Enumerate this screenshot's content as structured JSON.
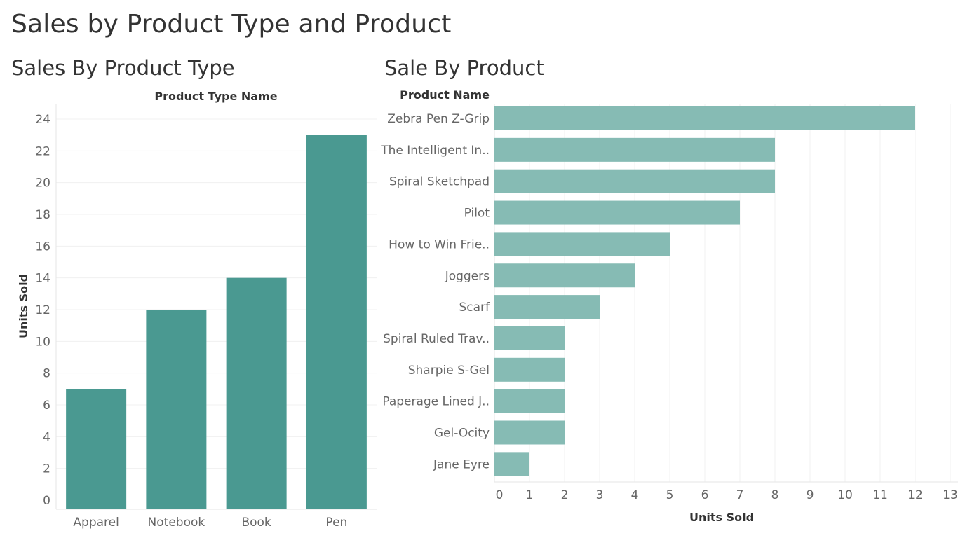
{
  "dashboard": {
    "title": "Sales by Product Type and Product"
  },
  "chart_data": [
    {
      "type": "bar",
      "orientation": "vertical",
      "title": "Sales By Product Type",
      "header_label": "Product Type Name",
      "categories": [
        "Apparel",
        "Notebook",
        "Book",
        "Pen"
      ],
      "values": [
        7,
        12,
        14,
        23
      ],
      "xlabel": "",
      "ylabel": "Units Sold",
      "ylim": [
        0,
        24
      ],
      "yticks": [
        0,
        2,
        4,
        6,
        8,
        10,
        12,
        14,
        16,
        18,
        20,
        22,
        24
      ],
      "grid": true,
      "color": "#4a9991"
    },
    {
      "type": "bar",
      "orientation": "horizontal",
      "title": "Sale By Product",
      "header_label": "Product Name",
      "categories": [
        "Zebra Pen Z-Grip",
        "The Intelligent In..",
        "Spiral Sketchpad",
        "Pilot",
        "How to Win Frie..",
        "Joggers",
        "Scarf",
        "Spiral Ruled Trav..",
        "Sharpie S-Gel",
        "Paperage Lined J..",
        "Gel-Ocity",
        "Jane Eyre"
      ],
      "values": [
        12,
        8,
        8,
        7,
        5,
        4,
        3,
        2,
        2,
        2,
        2,
        1
      ],
      "xlabel": "Units Sold",
      "ylabel": "",
      "xlim": [
        0,
        13
      ],
      "xticks": [
        0,
        1,
        2,
        3,
        4,
        5,
        6,
        7,
        8,
        9,
        10,
        11,
        12,
        13
      ],
      "grid": true,
      "color": "#86bbb4"
    }
  ]
}
